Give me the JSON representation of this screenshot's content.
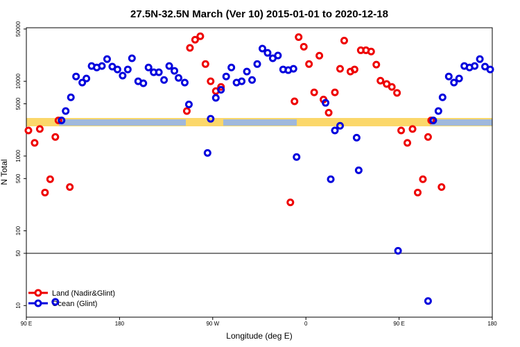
{
  "chart_data": {
    "type": "scatter",
    "title": "27.5N-32.5N March (Ver 10)   2015-01-01 to 2020-12-18",
    "x_label": "Longitude (deg E)",
    "y_label": "N Total",
    "log_y": true,
    "xlim": [
      90,
      540
    ],
    "ylim": [
      7,
      52000
    ],
    "xticks": [
      {
        "value": 90,
        "label": "90 E"
      },
      180,
      {
        "value": 270,
        "label": "90 W"
      },
      {
        "value": 360,
        "label": "0"
      },
      {
        "value": 450,
        "label": "90 E"
      },
      {
        "value": 540,
        "label": "180"
      }
    ],
    "yticks": [
      10,
      50,
      100,
      500,
      1000,
      5000,
      10000,
      50000
    ],
    "reference_line": 50,
    "legend": "bottom-left",
    "series": [
      {
        "name": "Land (Nadir&Glint)",
        "color": "#ee0000",
        "x": [
          92,
          98,
          103,
          108,
          113,
          118,
          121,
          132,
          245,
          248,
          253,
          258,
          263,
          268,
          273,
          278,
          345,
          349,
          353,
          358,
          363,
          368,
          373,
          377,
          382,
          388,
          393,
          397,
          403,
          407,
          413,
          418,
          423,
          428,
          432,
          438,
          443,
          448,
          452,
          458,
          463,
          468,
          473,
          478,
          481,
          491
        ],
        "values": [
          2200,
          1500,
          2300,
          325,
          490,
          1800,
          3000,
          385,
          4000,
          28000,
          36000,
          40000,
          17000,
          10000,
          7400,
          8400,
          240,
          5400,
          39000,
          29000,
          17000,
          7100,
          22000,
          5700,
          3800,
          7100,
          14700,
          35000,
          13500,
          14400,
          26000,
          26000,
          25000,
          16700,
          10200,
          9200,
          8400,
          7000,
          2200,
          1500,
          2300,
          325,
          490,
          1800,
          3000,
          385
        ]
      },
      {
        "name": "Ocean (Glint)",
        "color": "#0000dd",
        "x": [
          118,
          124,
          128,
          133,
          138,
          144,
          148,
          153,
          158,
          163,
          168,
          173,
          178,
          183,
          188,
          192,
          198,
          203,
          208,
          213,
          218,
          223,
          228,
          233,
          237,
          243,
          247,
          265,
          268,
          273,
          278,
          283,
          288,
          293,
          298,
          303,
          308,
          313,
          318,
          323,
          328,
          333,
          338,
          343,
          348,
          351,
          379,
          384,
          388,
          393,
          409,
          411,
          449,
          478,
          483,
          488,
          492,
          498,
          503,
          508,
          513,
          518,
          523,
          528,
          533,
          538
        ],
        "values": [
          11.2,
          3000,
          4000,
          6100,
          11600,
          9600,
          10900,
          16000,
          15300,
          16000,
          19800,
          15700,
          14400,
          11900,
          14400,
          20300,
          10000,
          9400,
          15300,
          13200,
          13200,
          10400,
          16000,
          13800,
          11100,
          9600,
          4900,
          1100,
          3150,
          6000,
          7700,
          11600,
          15300,
          9600,
          10000,
          13500,
          10400,
          17000,
          27400,
          24000,
          20300,
          22100,
          14400,
          14100,
          14700,
          970,
          5150,
          490,
          2200,
          2540,
          1760,
          645,
          54,
          11.5,
          3000,
          4000,
          6100,
          11600,
          9600,
          10900,
          16000,
          15300,
          16000,
          19800,
          15700,
          14400
        ]
      }
    ]
  }
}
